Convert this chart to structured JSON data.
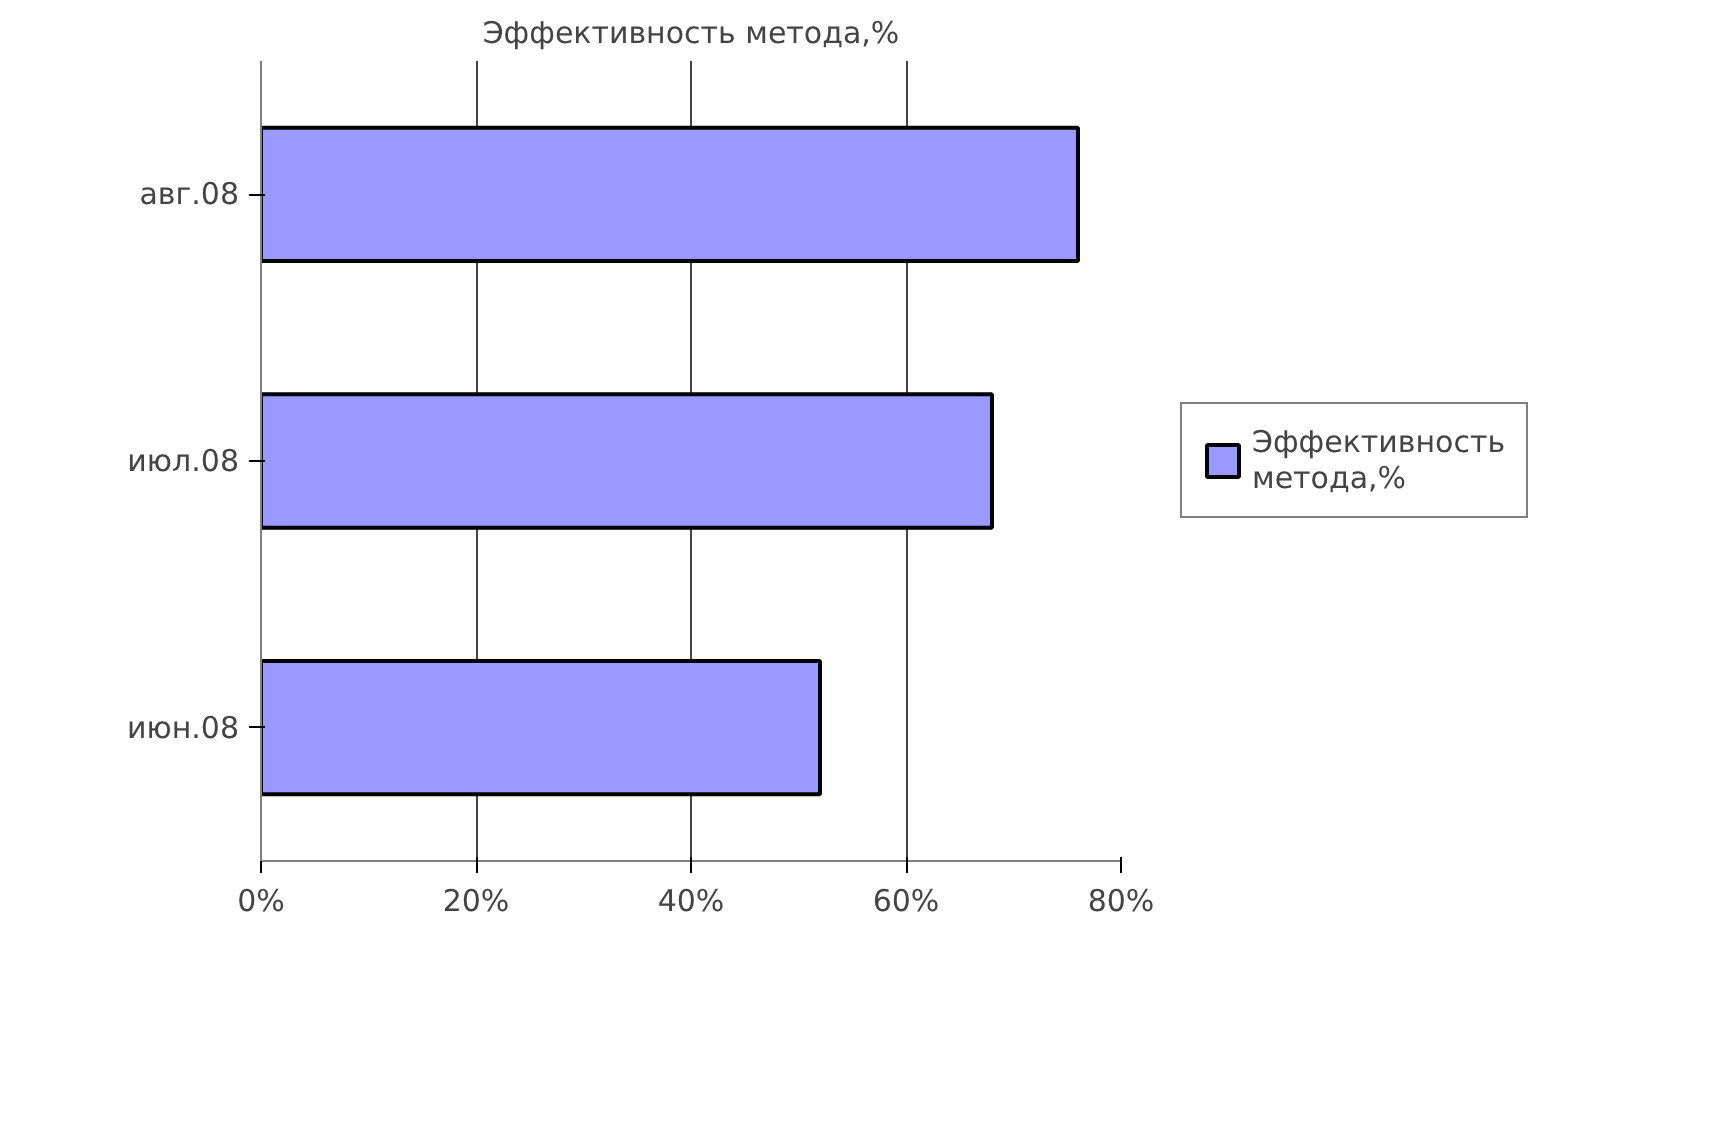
{
  "chart_data": {
    "type": "bar",
    "orientation": "horizontal",
    "title": "Эффективность метода,%",
    "categories": [
      "авг.08",
      "июл.08",
      "июн.08"
    ],
    "series": [
      {
        "name": "Эффективность метода,%",
        "color": "#9999ff",
        "values": [
          76,
          68,
          52
        ]
      }
    ],
    "xlim": [
      0,
      80
    ],
    "xticks": [
      {
        "value": 0,
        "label": "0%"
      },
      {
        "value": 20,
        "label": "20%"
      },
      {
        "value": 40,
        "label": "40%"
      },
      {
        "value": 60,
        "label": "60%"
      },
      {
        "value": 80,
        "label": "80%"
      }
    ],
    "grid": "x",
    "legend": "right"
  }
}
